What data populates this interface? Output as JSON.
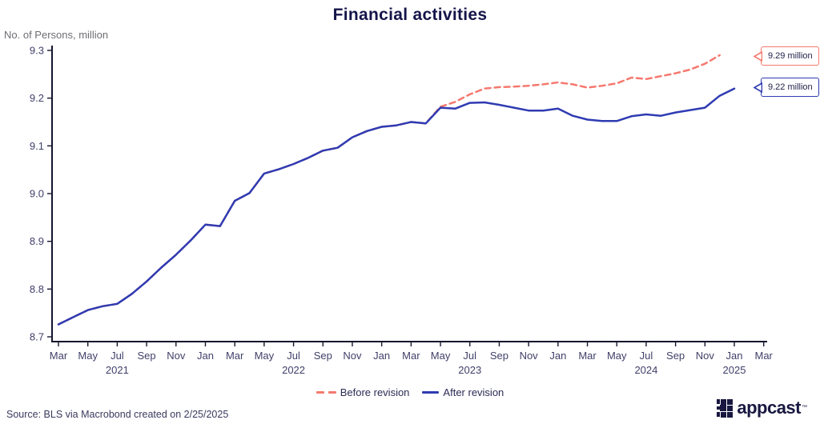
{
  "chart_data": {
    "type": "line",
    "title": "Financial activities",
    "ylabel": "No. of Persons, million",
    "ylim": [
      8.7,
      9.3
    ],
    "grid": false,
    "legend_position": "bottom",
    "y_tick_labels": [
      "8.7",
      "8.8",
      "8.9",
      "9.0",
      "9.1",
      "9.2",
      "9.3"
    ],
    "x_tick_labels": [
      "Mar",
      "May",
      "Jul",
      "Sep",
      "Nov",
      "Jan",
      "Mar",
      "May",
      "Jul",
      "Sep",
      "Nov",
      "Jan",
      "Mar",
      "May",
      "Jul",
      "Sep",
      "Nov",
      "Jan",
      "Mar",
      "May",
      "Jul",
      "Sep",
      "Nov",
      "Jan",
      "Mar"
    ],
    "year_labels": [
      {
        "text": "2021",
        "tick_index": 2
      },
      {
        "text": "2022",
        "tick_index": 8
      },
      {
        "text": "2023",
        "tick_index": 14
      },
      {
        "text": "2024",
        "tick_index": 20
      },
      {
        "text": "2025",
        "tick_index": 23
      }
    ],
    "x_start_month": "2021-03",
    "series": [
      {
        "name": "Before revision",
        "style": "dashed",
        "color": "#f5796f",
        "end_month": "2024-12",
        "values": [
          8.726,
          8.741,
          8.756,
          8.764,
          8.769,
          8.79,
          8.816,
          8.845,
          8.872,
          8.902,
          8.935,
          8.932,
          8.985,
          9.001,
          9.042,
          9.051,
          9.062,
          9.075,
          9.09,
          9.096,
          9.118,
          9.131,
          9.14,
          9.143,
          9.15,
          9.147,
          9.182,
          9.192,
          9.208,
          9.22,
          9.223,
          9.224,
          9.226,
          9.229,
          9.233,
          9.229,
          9.222,
          9.226,
          9.231,
          9.243,
          9.24,
          9.246,
          9.252,
          9.26,
          9.272,
          9.29
        ]
      },
      {
        "name": "After revision",
        "style": "solid",
        "color": "#2f3bb2",
        "end_month": "2025-01",
        "values": [
          8.726,
          8.741,
          8.756,
          8.764,
          8.769,
          8.79,
          8.816,
          8.845,
          8.872,
          8.902,
          8.935,
          8.932,
          8.985,
          9.001,
          9.042,
          9.051,
          9.062,
          9.075,
          9.09,
          9.096,
          9.118,
          9.131,
          9.14,
          9.143,
          9.15,
          9.147,
          9.18,
          9.178,
          9.19,
          9.191,
          9.186,
          9.18,
          9.174,
          9.174,
          9.178,
          9.163,
          9.155,
          9.152,
          9.152,
          9.162,
          9.166,
          9.163,
          9.17,
          9.175,
          9.18,
          9.205,
          9.22
        ]
      }
    ],
    "annotations": [
      {
        "text": "9.29 million",
        "series": "Before revision",
        "value": 9.29,
        "color": "#f5796f"
      },
      {
        "text": "9.22 million",
        "series": "After revision",
        "value": 9.22,
        "color": "#2f3bb2"
      }
    ]
  },
  "footer": {
    "source": "Source: BLS via Macrobond created on 2/25/2025",
    "logo_text": "appcast",
    "logo_tm": "™"
  },
  "colors": {
    "accent_salmon": "#f5796f",
    "accent_blue": "#2f3bb2",
    "axis": "#15152f",
    "tick_text": "#40406a",
    "muted_text": "#6e6e73",
    "navy_text": "#15154a"
  }
}
